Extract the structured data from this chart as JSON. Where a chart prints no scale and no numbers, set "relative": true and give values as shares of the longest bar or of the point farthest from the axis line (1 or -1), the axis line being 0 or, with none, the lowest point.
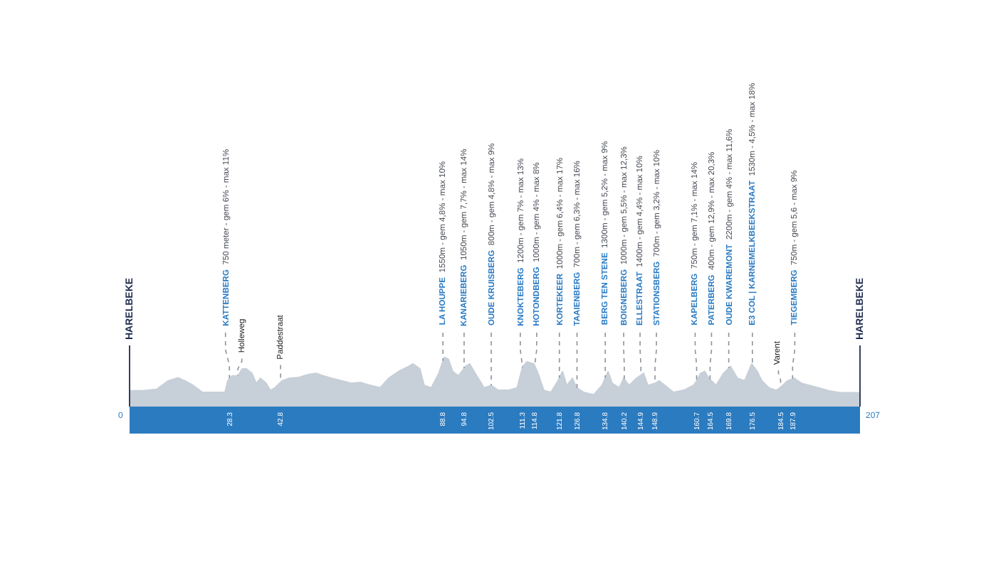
{
  "chart_data": {
    "type": "area",
    "relative": true,
    "color": "#c7cfd8",
    "x": [
      0,
      3.6,
      7.7,
      10.9,
      13.7,
      15.7,
      17.8,
      20.6,
      23.8,
      27.0,
      27.8,
      28.3,
      29.1,
      30.7,
      31.9,
      33.1,
      34.7,
      35.9,
      37.1,
      38.7,
      39.9,
      41.2,
      43.2,
      45.2,
      48.0,
      50.8,
      52.9,
      54.9,
      57.3,
      60.1,
      62.9,
      65.4,
      68.2,
      71.0,
      73.4,
      76.3,
      79.1,
      80.3,
      82.3,
      83.5,
      85.5,
      87.6,
      89.2,
      90.4,
      91.6,
      93.2,
      95.2,
      96.4,
      98.4,
      100.5,
      102.5,
      104.5,
      107.3,
      109.8,
      111.4,
      112.6,
      114.6,
      115.8,
      117.4,
      119.4,
      121.4,
      122.7,
      123.9,
      125.5,
      126.7,
      128.7,
      131.5,
      133.9,
      134.8,
      135.6,
      136.8,
      138.8,
      140.0,
      141.6,
      143.6,
      145.7,
      146.9,
      148.9,
      150.1,
      151.7,
      154.1,
      157.0,
      159.8,
      160.7,
      161.8,
      163.0,
      164.2,
      166.2,
      168.3,
      170.3,
      172.3,
      174.3,
      176.3,
      177.9,
      179.2,
      181.2,
      183.2,
      184.4,
      186.4,
      188.4,
      190.5,
      192.5,
      195.3,
      198.1,
      201.3,
      207
    ],
    "values": [
      0.32,
      0.32,
      0.35,
      0.52,
      0.58,
      0.52,
      0.44,
      0.29,
      0.29,
      0.29,
      0.52,
      0.57,
      0.62,
      0.62,
      0.76,
      0.76,
      0.67,
      0.47,
      0.57,
      0.47,
      0.33,
      0.38,
      0.52,
      0.57,
      0.59,
      0.65,
      0.67,
      0.62,
      0.57,
      0.52,
      0.47,
      0.49,
      0.43,
      0.38,
      0.57,
      0.71,
      0.81,
      0.86,
      0.76,
      0.43,
      0.38,
      0.67,
      1,
      0.95,
      0.71,
      0.62,
      0.81,
      0.86,
      0.62,
      0.38,
      0.43,
      0.33,
      0.33,
      0.38,
      0.81,
      0.9,
      0.86,
      0.67,
      0.33,
      0.29,
      0.52,
      0.71,
      0.43,
      0.57,
      0.38,
      0.29,
      0.24,
      0.43,
      0.58,
      0.71,
      0.47,
      0.38,
      0.57,
      0.43,
      0.57,
      0.67,
      0.43,
      0.47,
      0.52,
      0.43,
      0.29,
      0.33,
      0.43,
      0.52,
      0.67,
      0.71,
      0.57,
      0.43,
      0.67,
      0.81,
      0.57,
      0.52,
      0.86,
      0.71,
      0.52,
      0.38,
      0.33,
      0.38,
      0.52,
      0.57,
      0.47,
      0.43,
      0.38,
      0.32,
      0.28,
      0.28
    ],
    "xlim": [
      0,
      207
    ],
    "xticks": [
      28.3,
      42.8,
      88.8,
      94.8,
      102.5,
      111.3,
      114.8,
      121.8,
      126.8,
      134.8,
      140.2,
      144.9,
      148.9,
      160.7,
      164.5,
      169.8,
      176.5,
      184.5,
      187.9
    ],
    "ref_lines": [
      {
        "axis": "x",
        "value": 0,
        "label": "HARELBEKE",
        "color": "#1f2b4d"
      },
      {
        "axis": "x",
        "value": 207,
        "label": "HARELBEKE",
        "color": "#1f2b4d"
      }
    ],
    "annotations": [
      "0",
      "207",
      {
        "text": "KATTENBERG 750 meter - gem 6% - max 11%",
        "x": 28.3
      },
      {
        "text": "Holleweg",
        "x": 30.7
      },
      {
        "text": "Paddestraat",
        "x": 42.8
      },
      {
        "text": "LA HOUPPE 1550m - gem 4,8% - max 10%",
        "x": 88.8
      },
      {
        "text": "KANARIEBERG 1050m - gem 7,7% - max 14%",
        "x": 94.8
      },
      {
        "text": "OUDE KRUISBERG 800m - gem 4,8% - max 9%",
        "x": 102.5
      },
      {
        "text": "KNOKTEBERG 1200m - gem 7% - max 13%",
        "x": 111.3
      },
      {
        "text": "HOTONDBERG 1000m - gem 4% - max 8%",
        "x": 114.8
      },
      {
        "text": "KORTEKEER 1000m - gem 6,4% - max 17%",
        "x": 121.8
      },
      {
        "text": "TAAIENBERG 700m - gem 6,3% - max 16%",
        "x": 126.8
      },
      {
        "text": "BERG TEN STENE 1300m - gem 5,2% - max 9%",
        "x": 134.8
      },
      {
        "text": "BOIGNEBERG 1000m - gem 5,5% - max 12,3%",
        "x": 140.2
      },
      {
        "text": "ELLESTRAAT 1400m - gem 4,4% - max 10%",
        "x": 144.9
      },
      {
        "text": "STATIONSBERG 700m - gem 3,2% - max 10%",
        "x": 148.9
      },
      {
        "text": "KAPELBERG 750m - gem 7,1% - max 14%",
        "x": 160.7
      },
      {
        "text": "PATERBERG 400m - gem 12,9% - max 20,3%",
        "x": 164.5
      },
      {
        "text": "OUDE KWAREMONT 2200m - gem 4% - max 11,6%",
        "x": 169.8
      },
      {
        "text": "E3 COL | KARNEMELKBEEKSTRAAT 1530m - 4,5% - max 18%",
        "x": 176.5
      },
      {
        "text": "Varent",
        "x": 184.5
      },
      {
        "text": "TIEGEMBERG 750m - gem 5,6 - max 9%",
        "x": 187.9
      }
    ]
  }
}
